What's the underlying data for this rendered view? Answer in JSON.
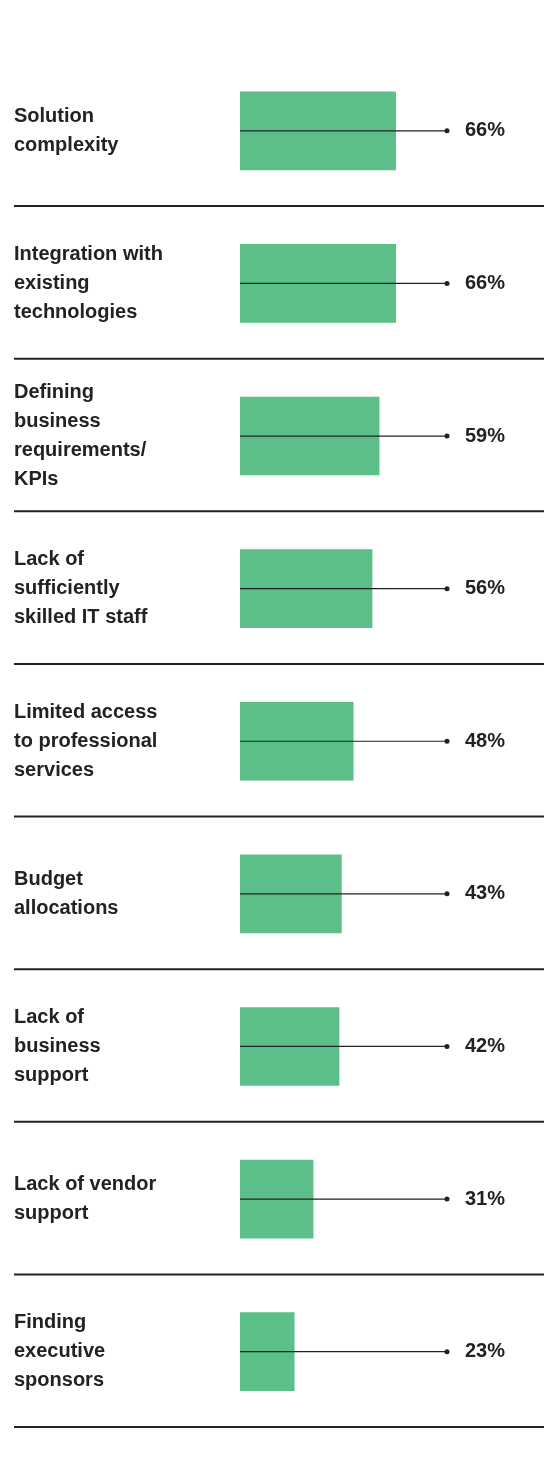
{
  "chart_data": {
    "type": "bar",
    "orientation": "horizontal",
    "categories": [
      "Solution complexity",
      "Integration with existing technologies",
      "Defining business requirements/ KPIs",
      "Lack of sufficiently skilled IT staff",
      "Limited access to professional services",
      "Budget allocations",
      "Lack of business support",
      "Lack of vendor support",
      "Finding executive sponsors"
    ],
    "values": [
      66,
      66,
      59,
      56,
      48,
      43,
      42,
      31,
      23
    ],
    "value_labels": [
      "66%",
      "66%",
      "59%",
      "56%",
      "48%",
      "43%",
      "42%",
      "31%",
      "23%"
    ],
    "color": "#5cbf8a",
    "grid": "y"
  }
}
